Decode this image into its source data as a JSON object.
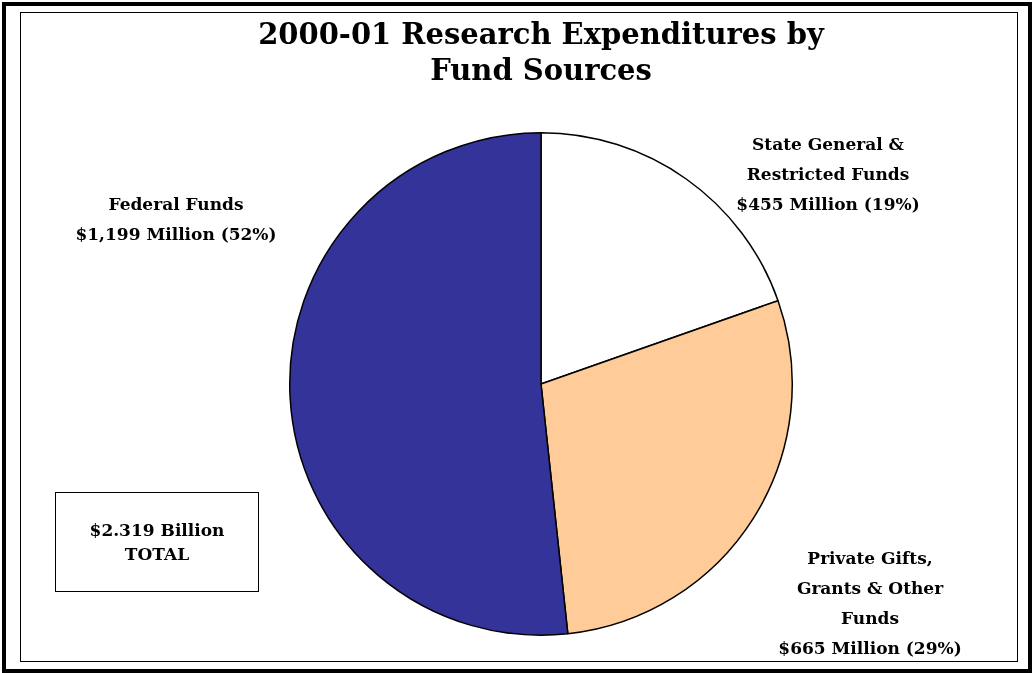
{
  "chart_data": {
    "type": "pie",
    "title": "2000-01 Research Expenditures by Fund Sources",
    "categories": [
      "State General & Restricted Funds",
      "Private Gifts, Grants & Other Funds",
      "Federal Funds"
    ],
    "values": [
      455,
      665,
      1199
    ],
    "value_labels": [
      "$455 Million (19%)",
      "$665 Million (29%)",
      "$1,199 Million (52%)"
    ],
    "colors": [
      "#ffffff",
      "#ffcc99",
      "#333399"
    ],
    "annotations": [
      "$2.319 Billion\nTOTAL"
    ]
  }
}
